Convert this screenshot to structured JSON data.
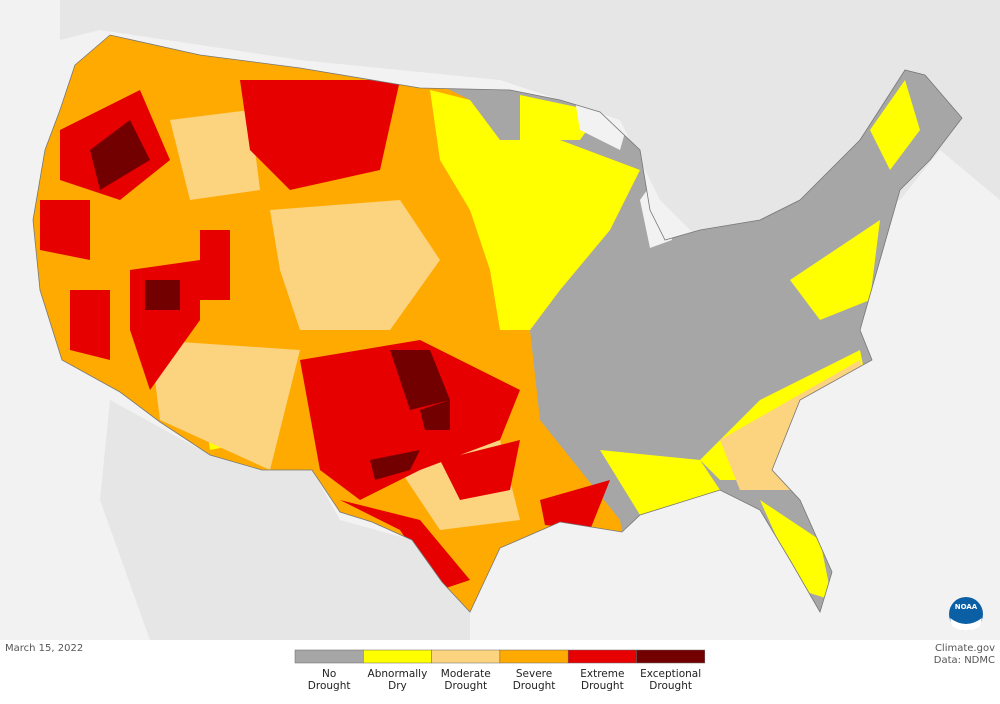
{
  "date": "March 15, 2022",
  "credit": {
    "source": "Climate.gov",
    "data": "Data: NDMC"
  },
  "logo": "NOAA",
  "legend": {
    "items": [
      {
        "lines": [
          "No",
          "Drought"
        ],
        "color": "#a6a6a6"
      },
      {
        "lines": [
          "Abnormally",
          "Dry"
        ],
        "color": "#ffff00"
      },
      {
        "lines": [
          "Moderate",
          "Drought"
        ],
        "color": "#fcd37f"
      },
      {
        "lines": [
          "Severe",
          "Drought"
        ],
        "color": "#ffaa00"
      },
      {
        "lines": [
          "Extreme",
          "Drought"
        ],
        "color": "#e60000"
      },
      {
        "lines": [
          "Exceptional",
          "Drought"
        ],
        "color": "#730000"
      }
    ]
  }
}
